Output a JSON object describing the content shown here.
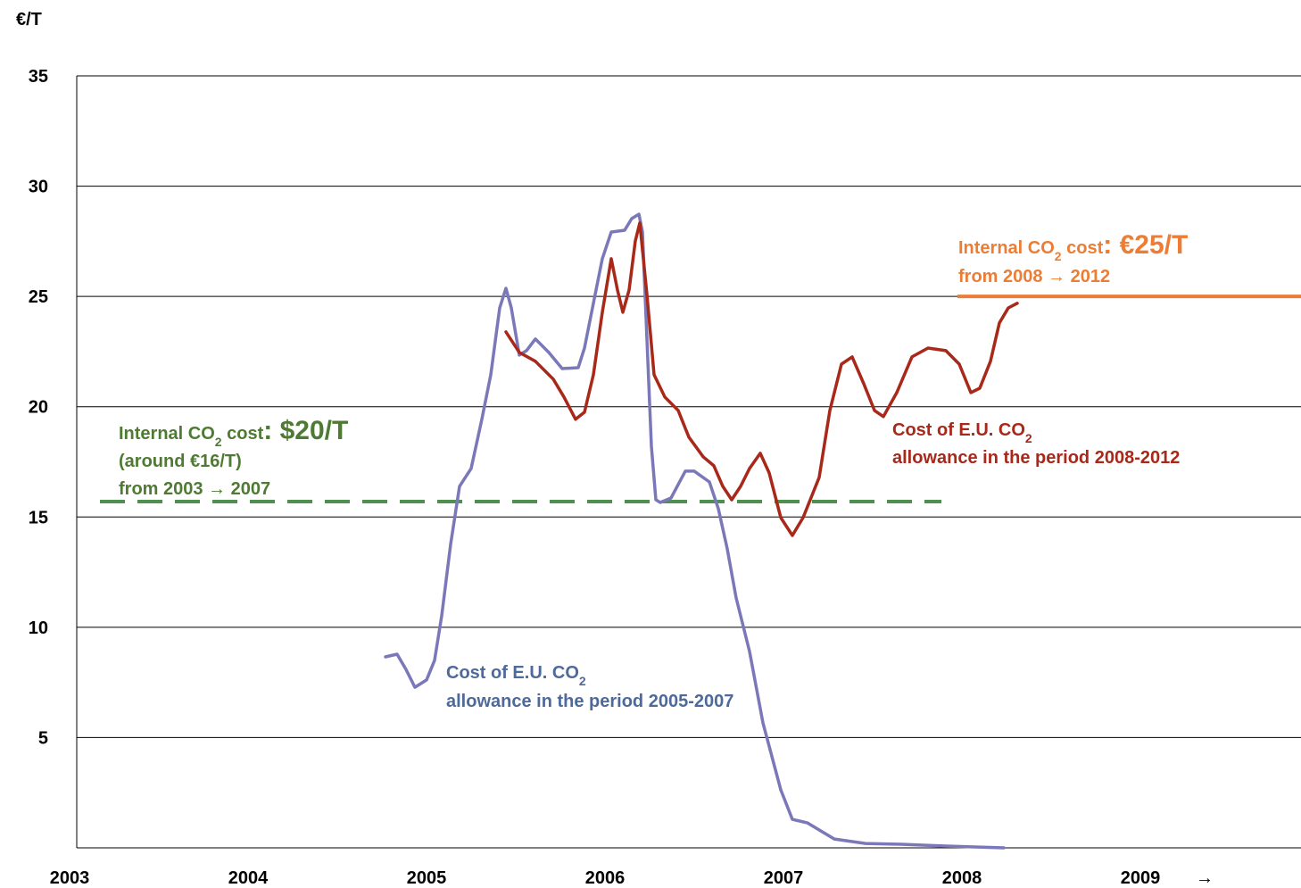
{
  "chart_data": {
    "type": "line",
    "y_label": "€/T",
    "xlim": [
      2002.99,
      2009.85
    ],
    "xticks": [
      2003,
      2004,
      2005,
      2006,
      2007,
      2008,
      2009
    ],
    "x_arrow": "→",
    "ylim": [
      0,
      35
    ],
    "yticks": [
      5,
      10,
      15,
      20,
      25,
      30,
      35
    ],
    "grid": true,
    "series": [
      {
        "color": "#7a78b8",
        "x": [
          2004.72,
          2004.785,
          2004.835,
          2004.885,
          2004.95,
          2004.995,
          2005.035,
          2005.085,
          2005.135,
          2005.2,
          2005.26,
          2005.31,
          2005.36,
          2005.395,
          2005.425,
          2005.47,
          2005.51,
          2005.56,
          2005.635,
          2005.71,
          2005.8,
          2005.835,
          2005.885,
          2005.935,
          2005.985,
          2006.06,
          2006.1,
          2006.14,
          2006.16,
          2006.185,
          2006.21,
          2006.235,
          2006.26,
          2006.32,
          2006.4,
          2006.45,
          2006.535,
          2006.585,
          2006.635,
          2006.685,
          2006.76,
          2006.835,
          2006.935,
          2007.0,
          2007.085,
          2007.235,
          2007.41,
          2007.61,
          2007.86,
          2008.185
        ],
        "values": [
          8.66,
          8.78,
          8.09,
          7.28,
          7.61,
          8.5,
          10.52,
          13.76,
          16.39,
          17.2,
          19.43,
          21.45,
          24.48,
          25.37,
          24.48,
          22.34,
          22.54,
          23.07,
          22.46,
          21.73,
          21.77,
          22.66,
          24.69,
          26.71,
          27.92,
          28.0,
          28.53,
          28.73,
          27.92,
          23.07,
          18.21,
          15.78,
          15.66,
          15.86,
          17.08,
          17.08,
          16.59,
          15.38,
          13.56,
          11.33,
          8.9,
          5.67,
          2.63,
          1.29,
          1.13,
          0.4,
          0.2,
          0.16,
          0.08,
          0
        ]
      },
      {
        "color": "#a8281a",
        "x": [
          2005.395,
          2005.47,
          2005.56,
          2005.66,
          2005.72,
          2005.785,
          2005.835,
          2005.885,
          2005.935,
          2005.985,
          2006.02,
          2006.05,
          2006.085,
          2006.12,
          2006.145,
          2006.185,
          2006.225,
          2006.285,
          2006.36,
          2006.42,
          2006.5,
          2006.56,
          2006.61,
          2006.66,
          2006.71,
          2006.76,
          2006.82,
          2006.87,
          2006.935,
          2007.0,
          2007.06,
          2007.15,
          2007.21,
          2007.275,
          2007.335,
          2007.4,
          2007.46,
          2007.51,
          2007.585,
          2007.67,
          2007.76,
          2007.86,
          2007.935,
          2008.0,
          2008.05,
          2008.11,
          2008.16,
          2008.21,
          2008.26
        ],
        "values": [
          23.39,
          22.46,
          22.06,
          21.25,
          20.44,
          19.43,
          19.75,
          21.45,
          24.28,
          26.71,
          25.29,
          24.28,
          25.29,
          27.52,
          28.33,
          25.09,
          21.45,
          20.44,
          19.83,
          18.62,
          17.73,
          17.32,
          16.39,
          15.78,
          16.39,
          17.2,
          17.89,
          17.0,
          14.97,
          14.16,
          14.97,
          16.79,
          19.83,
          21.93,
          22.26,
          21.04,
          19.83,
          19.55,
          20.64,
          22.26,
          22.66,
          22.54,
          21.93,
          20.64,
          20.84,
          22.06,
          23.8,
          24.48,
          24.69
        ]
      }
    ],
    "reference_lines": [
      {
        "value": 15.7,
        "x": [
          2003.12,
          2007.835
        ],
        "color": "#4f8f4f",
        "dashed": true
      },
      {
        "value": 25,
        "x": [
          2007.925,
          2009.85
        ],
        "color": "#ec7d35",
        "dashed": false
      }
    ],
    "annotations": [
      {
        "color": "#4f7a33",
        "lines": [
          [
            {
              "text": "Internal CO"
            },
            {
              "text": "2",
              "sub": true
            },
            {
              "text": " cost"
            },
            {
              "text": ": ",
              "big": true
            },
            {
              "text": "$20/T",
              "big": true
            }
          ],
          [
            {
              "text": "(around €16/T)"
            }
          ],
          [
            {
              "text": "from 2003 → 2007"
            }
          ]
        ]
      },
      {
        "color": "#ec7d35",
        "lines": [
          [
            {
              "text": "Internal CO"
            },
            {
              "text": "2",
              "sub": true
            },
            {
              "text": " cost"
            },
            {
              "text": ": ",
              "big": true
            },
            {
              "text": "€25/T",
              "big": true
            }
          ],
          [
            {
              "text": "from 2008  → 2012"
            }
          ]
        ]
      },
      {
        "color": "#4d6a9a",
        "lines": [
          [
            {
              "text": "Cost of E.U. CO"
            },
            {
              "text": "2",
              "sub": true
            }
          ],
          [
            {
              "text": "allowance in the period 2005-2007"
            }
          ]
        ]
      },
      {
        "color": "#a8281a",
        "lines": [
          [
            {
              "text": "Cost of E.U. CO"
            },
            {
              "text": "2",
              "sub": true
            }
          ],
          [
            {
              "text": "allowance in the period 2008-2012"
            }
          ]
        ]
      }
    ]
  }
}
